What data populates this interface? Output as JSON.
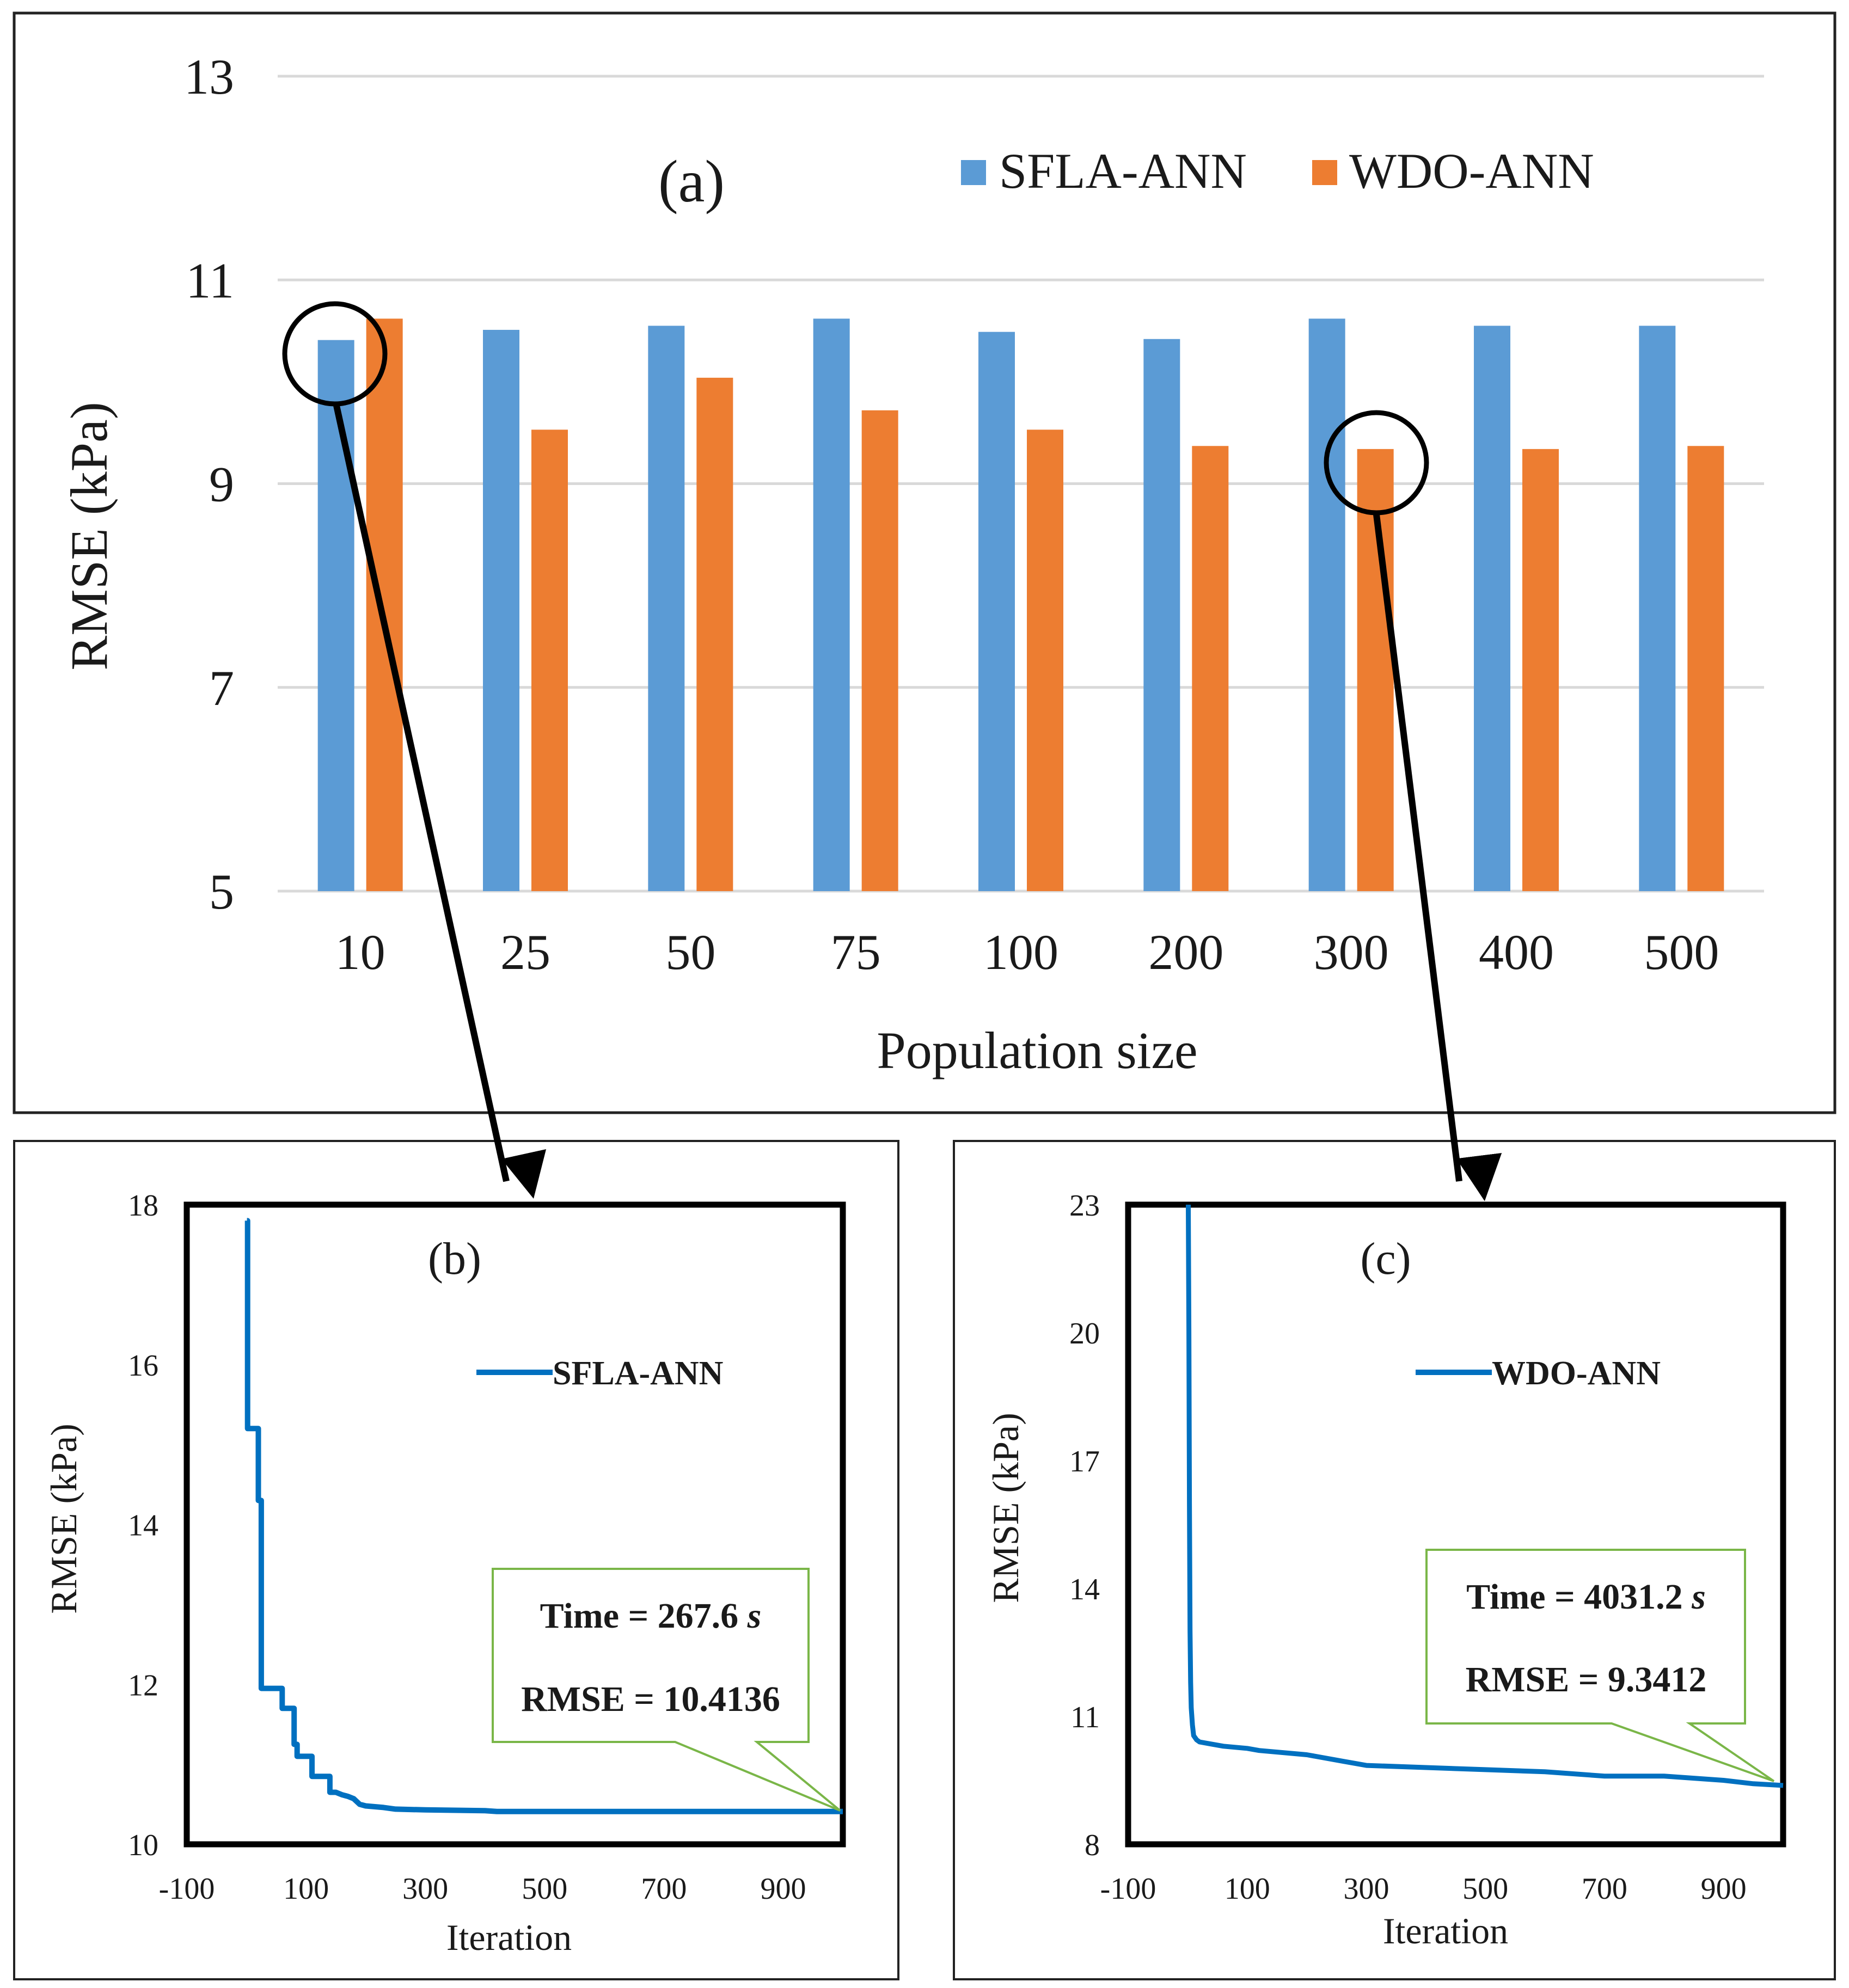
{
  "chart_data": [
    {
      "type": "bar",
      "panel_label": "(a)",
      "xlabel": "Population size",
      "ylabel": "RMSE (kPa)",
      "ylim": [
        5,
        13
      ],
      "yticks": [
        5,
        7,
        9,
        11,
        13
      ],
      "grid": true,
      "legend_position": "top-right",
      "categories": [
        "10",
        "25",
        "50",
        "75",
        "100",
        "200",
        "300",
        "400",
        "500"
      ],
      "series": [
        {
          "name": "SFLA-ANN",
          "color": "#5b9bd5",
          "values": [
            10.41,
            10.51,
            10.55,
            10.62,
            10.49,
            10.42,
            10.62,
            10.55,
            10.55
          ]
        },
        {
          "name": "WDO-ANN",
          "color": "#ed7d31",
          "values": [
            10.62,
            9.53,
            10.04,
            9.72,
            9.53,
            9.37,
            9.34,
            9.34,
            9.37
          ]
        }
      ]
    },
    {
      "type": "line",
      "panel_label": "(b)",
      "xlabel": "Iteration",
      "ylabel": "RMSE (kPa)",
      "xlim": [
        -100,
        1000
      ],
      "ylim": [
        10,
        18
      ],
      "xticks": [
        -100,
        100,
        300,
        500,
        700,
        900
      ],
      "yticks": [
        10,
        12,
        14,
        16,
        18
      ],
      "legend_position": "top-right",
      "series": [
        {
          "name": "SFLA-ANN",
          "color": "#0070c0",
          "x": [
            1,
            2,
            2,
            20,
            20,
            25,
            25,
            60,
            60,
            80,
            80,
            85,
            85,
            90,
            90,
            110,
            110,
            140,
            140,
            150,
            160,
            170,
            180,
            190,
            200,
            230,
            250,
            300,
            400,
            420,
            500,
            600,
            700,
            800,
            900,
            1000
          ],
          "y": [
            17.8,
            17.8,
            15.2,
            15.2,
            14.3,
            14.3,
            11.95,
            11.95,
            11.7,
            11.7,
            11.25,
            11.25,
            11.1,
            11.1,
            11.1,
            11.1,
            10.85,
            10.85,
            10.65,
            10.65,
            10.62,
            10.6,
            10.57,
            10.5,
            10.48,
            10.46,
            10.44,
            10.43,
            10.42,
            10.41,
            10.41,
            10.41,
            10.41,
            10.41,
            10.41,
            10.41
          ]
        }
      ],
      "callout": {
        "time_label": "Time = 267.6",
        "time_unit": "s",
        "rmse_label": "RMSE = 10.4136"
      }
    },
    {
      "type": "line",
      "panel_label": "(c)",
      "xlabel": "Iteration",
      "ylabel": "RMSE (kPa)",
      "xlim": [
        -100,
        1000
      ],
      "ylim": [
        8,
        23
      ],
      "xticks": [
        -100,
        100,
        300,
        500,
        700,
        900
      ],
      "yticks": [
        8,
        11,
        14,
        17,
        20,
        23
      ],
      "legend_position": "top-right",
      "series": [
        {
          "name": "WDO-ANN",
          "color": "#0070c0",
          "x": [
            1,
            2,
            3,
            4,
            5,
            6,
            8,
            10,
            15,
            20,
            40,
            60,
            100,
            120,
            200,
            260,
            300,
            400,
            500,
            600,
            700,
            800,
            900,
            950,
            1000
          ],
          "y": [
            23.0,
            20.0,
            16.0,
            13.0,
            11.8,
            11.2,
            10.8,
            10.55,
            10.45,
            10.4,
            10.35,
            10.3,
            10.25,
            10.2,
            10.1,
            9.95,
            9.85,
            9.8,
            9.75,
            9.7,
            9.6,
            9.6,
            9.5,
            9.42,
            9.38
          ]
        }
      ],
      "callout": {
        "time_label": "Time = 4031.2",
        "time_unit": "s",
        "rmse_label": "RMSE = 9.3412"
      }
    }
  ]
}
